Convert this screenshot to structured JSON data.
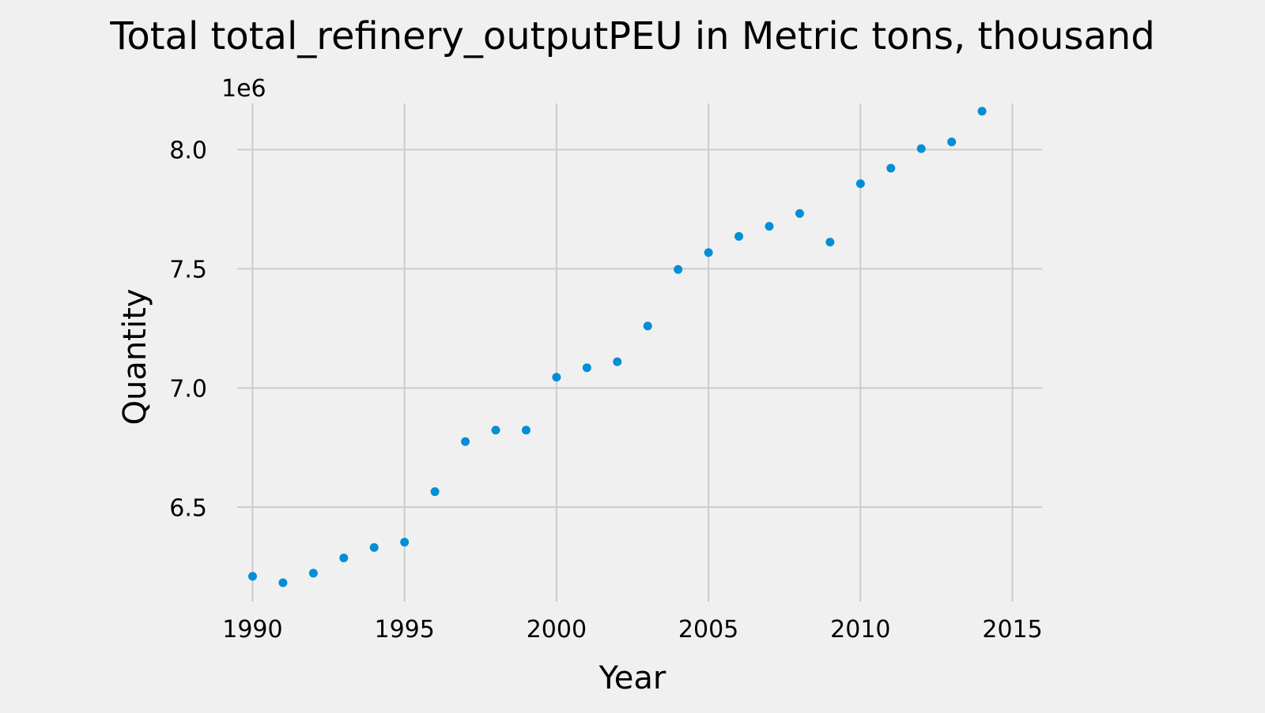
{
  "chart_data": {
    "type": "scatter",
    "title": "Total total_refinery_outputPEU in Metric tons,  thousand",
    "xlabel": "Year",
    "ylabel": "Quantity",
    "y_offset_label": "1e6",
    "x": [
      1990,
      1991,
      1992,
      1993,
      1994,
      1995,
      1996,
      1997,
      1998,
      1999,
      2000,
      2001,
      2002,
      2003,
      2004,
      2005,
      2006,
      2007,
      2008,
      2009,
      2010,
      2011,
      2012,
      2013,
      2014
    ],
    "y": [
      6210000,
      6183000,
      6223000,
      6287000,
      6331000,
      6353000,
      6565000,
      6775000,
      6823000,
      6823000,
      7045000,
      7085000,
      7110000,
      7260000,
      7497000,
      7568000,
      7636000,
      7678000,
      7732000,
      7612000,
      7857000,
      7922000,
      8004000,
      8032000,
      8161000
    ],
    "xlim": [
      1989,
      2016
    ],
    "ylim": [
      6130000,
      8240000
    ],
    "x_ticks": [
      1990,
      1995,
      2000,
      2005,
      2010,
      2015
    ],
    "y_ticks": [
      6.5,
      7.0,
      7.5,
      8.0
    ],
    "y_tick_labels": [
      "6.5",
      "7.0",
      "7.5",
      "8.0"
    ],
    "grid": true,
    "marker_color": "#008fd5"
  }
}
